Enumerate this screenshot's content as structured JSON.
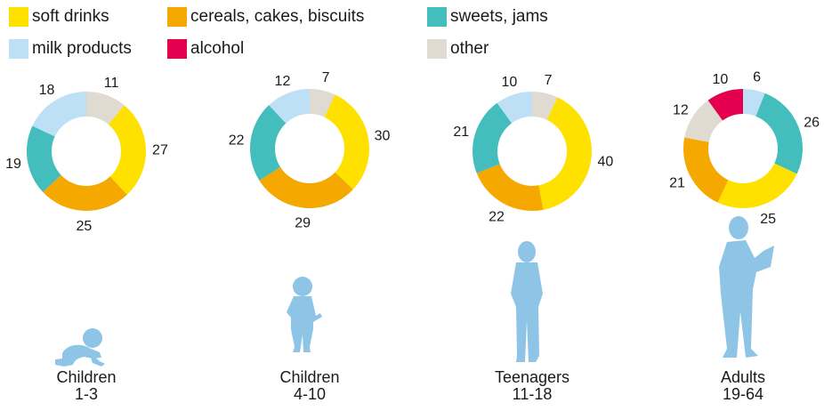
{
  "legend": [
    {
      "label": "soft drinks",
      "color": "#ffe100"
    },
    {
      "label": "cereals, cakes, biscuits",
      "color": "#f5a800"
    },
    {
      "label": "sweets, jams",
      "color": "#44bdbd"
    },
    {
      "label": "milk products",
      "color": "#bde0f6"
    },
    {
      "label": "alcohol",
      "color": "#e4004f"
    },
    {
      "label": "other",
      "color": "#dfdbd0"
    }
  ],
  "figure_color": "#8ec4e6",
  "chart_data": {
    "type": "pie",
    "variant": "donut",
    "categories": [
      "soft drinks",
      "cereals, cakes, biscuits",
      "sweets, jams",
      "milk products",
      "alcohol",
      "other"
    ],
    "series": [
      {
        "name": "Children 1-3",
        "line1": "Children",
        "line2": "1-3",
        "figure": "baby-crawling",
        "values": [
          27,
          25,
          19,
          18,
          0,
          11
        ]
      },
      {
        "name": "Children 4-10",
        "line1": "Children",
        "line2": "4-10",
        "figure": "child-standing",
        "values": [
          30,
          29,
          22,
          12,
          0,
          7
        ]
      },
      {
        "name": "Teenagers 11-18",
        "line1": "Teenagers",
        "line2": "11-18",
        "figure": "teenager-standing",
        "values": [
          40,
          22,
          21,
          10,
          0,
          7
        ]
      },
      {
        "name": "Adults 19-64",
        "line1": "Adults",
        "line2": "19-64",
        "figure": "adult-reading",
        "values": [
          25,
          21,
          26,
          6,
          10,
          12
        ]
      }
    ]
  }
}
